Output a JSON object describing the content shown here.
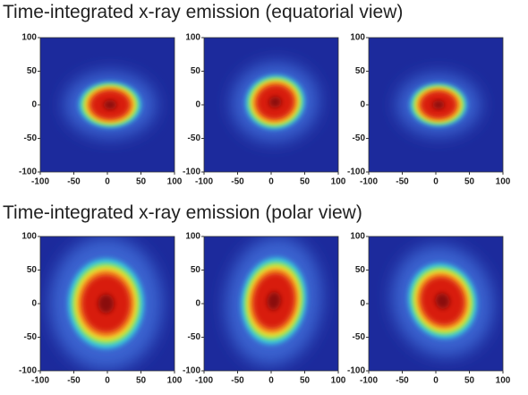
{
  "headings": [
    "Time-integrated x-ray emission (equatorial view)",
    "Time-integrated x-ray emission (polar view)"
  ],
  "chart_data": [
    {
      "type": "heatmap",
      "xlim": [
        -100,
        100
      ],
      "ylim": [
        -100,
        100
      ],
      "xticks": [
        -100,
        -50,
        0,
        50,
        100
      ],
      "yticks": [
        -100,
        -50,
        0,
        50,
        100
      ]
    },
    {
      "type": "heatmap",
      "xlim": [
        -100,
        100
      ],
      "ylim": [
        -100,
        100
      ],
      "xticks": [
        -100,
        -50,
        0,
        50,
        100
      ],
      "yticks": [
        -100,
        -50,
        0,
        50,
        100
      ]
    },
    {
      "type": "heatmap",
      "xlim": [
        -100,
        100
      ],
      "ylim": [
        -100,
        100
      ],
      "xticks": [
        -100,
        -50,
        0,
        50,
        100
      ],
      "yticks": [
        -100,
        -50,
        0,
        50,
        100
      ]
    },
    {
      "type": "heatmap",
      "xlim": [
        -100,
        100
      ],
      "ylim": [
        -100,
        100
      ],
      "xticks": [
        -100,
        -50,
        0,
        50,
        100
      ],
      "yticks": [
        -100,
        -50,
        0,
        50,
        100
      ]
    },
    {
      "type": "heatmap",
      "xlim": [
        -100,
        100
      ],
      "ylim": [
        -100,
        100
      ],
      "xticks": [
        -100,
        -50,
        0,
        50,
        100
      ],
      "yticks": [
        -100,
        -50,
        0,
        50,
        100
      ]
    },
    {
      "type": "heatmap",
      "xlim": [
        -100,
        100
      ],
      "ylim": [
        -100,
        100
      ],
      "xticks": [
        -100,
        -50,
        0,
        50,
        100
      ],
      "yticks": [
        -100,
        -50,
        0,
        50,
        100
      ]
    }
  ]
}
